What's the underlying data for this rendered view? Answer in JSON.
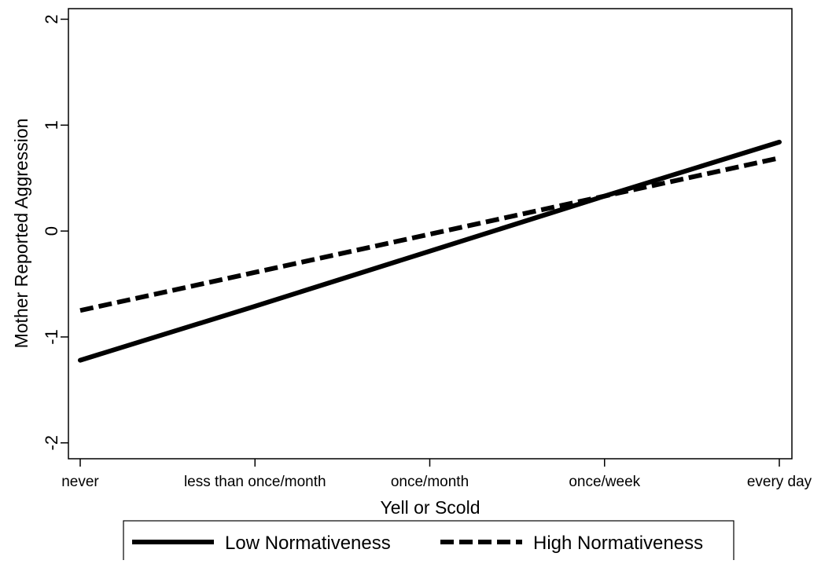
{
  "chart_data": {
    "type": "line",
    "title": "",
    "xlabel": "Yell or Scold",
    "ylabel": "Mother Reported Aggression",
    "categories": [
      "never",
      "less than once/month",
      "once/month",
      "once/week",
      "every day"
    ],
    "y_ticks": [
      "-2",
      "-1",
      "0",
      "1",
      "2"
    ],
    "ylim": [
      -2.15,
      2.1
    ],
    "grid": false,
    "legend_position": "bottom",
    "series": [
      {
        "name": "Low Normativeness",
        "style": "solid",
        "color": "#000000",
        "values": [
          -1.22,
          -0.71,
          -0.19,
          0.33,
          0.84
        ]
      },
      {
        "name": "High Normativeness",
        "style": "dashed",
        "color": "#000000",
        "values": [
          -0.75,
          -0.39,
          -0.03,
          0.33,
          0.69
        ]
      }
    ]
  }
}
